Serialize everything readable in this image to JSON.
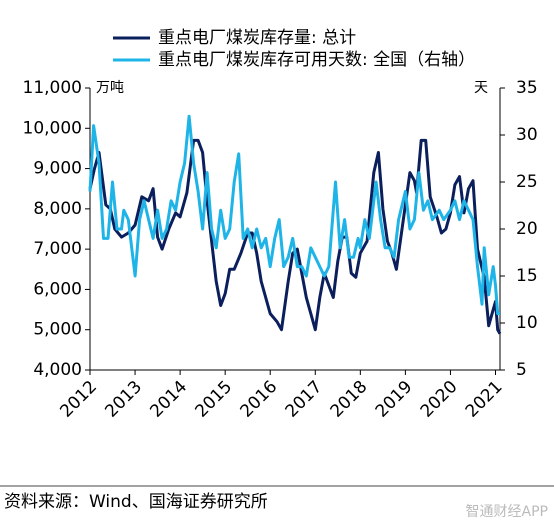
{
  "chart_data": {
    "type": "line",
    "legend": "top",
    "y_unit_label": "万吨",
    "y2_unit_label": "天",
    "source": "资料来源：Wind、国海证券研究所",
    "watermark": "智通财经APP",
    "xlim": [
      2012,
      2021.1
    ],
    "xticks": [
      2012,
      2013,
      2014,
      2015,
      2016,
      2017,
      2018,
      2019,
      2020,
      2021
    ],
    "ylim": [
      4000,
      11000
    ],
    "yticks": [
      {
        "value": 4000,
        "label": "4,000"
      },
      {
        "value": 5000,
        "label": "5,000"
      },
      {
        "value": 6000,
        "label": "6,000"
      },
      {
        "value": 7000,
        "label": "7,000"
      },
      {
        "value": 8000,
        "label": "8,000"
      },
      {
        "value": 9000,
        "label": "9,000"
      },
      {
        "value": 10000,
        "label": "10,000"
      },
      {
        "value": 11000,
        "label": "11,000"
      }
    ],
    "y2lim": [
      5,
      35
    ],
    "y2ticks": [
      5,
      10,
      15,
      20,
      25,
      30,
      35
    ],
    "series": [
      {
        "name": "重点电厂煤炭库存量: 总计",
        "color": "#0b1f5c",
        "x": [
          2012.0,
          2012.1,
          2012.2,
          2012.35,
          2012.45,
          2012.55,
          2012.7,
          2012.85,
          2013.0,
          2013.15,
          2013.3,
          2013.4,
          2013.5,
          2013.6,
          2013.75,
          2013.9,
          2014.0,
          2014.15,
          2014.3,
          2014.4,
          2014.5,
          2014.6,
          2014.7,
          2014.8,
          2014.9,
          2015.0,
          2015.1,
          2015.2,
          2015.35,
          2015.5,
          2015.6,
          2015.7,
          2015.8,
          2015.9,
          2016.0,
          2016.15,
          2016.25,
          2016.4,
          2016.5,
          2016.6,
          2016.7,
          2016.8,
          2016.9,
          2017.0,
          2017.1,
          2017.2,
          2017.3,
          2017.4,
          2017.5,
          2017.6,
          2017.7,
          2017.8,
          2017.9,
          2018.0,
          2018.15,
          2018.3,
          2018.4,
          2018.5,
          2018.6,
          2018.7,
          2018.8,
          2019.0,
          2019.1,
          2019.2,
          2019.25,
          2019.35,
          2019.45,
          2019.55,
          2019.7,
          2019.8,
          2019.9,
          2020.0,
          2020.1,
          2020.2,
          2020.3,
          2020.4,
          2020.5,
          2020.6,
          2020.75,
          2020.85,
          2020.95,
          2021.0,
          2021.05,
          2021.1
        ],
        "values": [
          8500,
          9000,
          9400,
          8100,
          8000,
          7500,
          7300,
          7400,
          7600,
          8300,
          8200,
          8500,
          7300,
          7000,
          7500,
          7900,
          7800,
          8400,
          9700,
          9700,
          9400,
          8200,
          7200,
          6200,
          5600,
          5900,
          6500,
          6500,
          6900,
          7400,
          7400,
          6900,
          6200,
          5800,
          5400,
          5200,
          5000,
          6200,
          6900,
          7000,
          6400,
          5800,
          5400,
          5000,
          5800,
          6400,
          6100,
          5800,
          6700,
          7300,
          7300,
          6400,
          6300,
          6900,
          7200,
          8900,
          9400,
          8000,
          7200,
          6900,
          6500,
          8100,
          8900,
          8700,
          8400,
          9700,
          9700,
          8300,
          7800,
          7400,
          7500,
          7900,
          8600,
          8800,
          7900,
          8500,
          8700,
          7000,
          6300,
          5100,
          5500,
          5700,
          5000,
          4900
        ]
      },
      {
        "name": "重点电厂煤炭库存可用天数: 全国（右轴）",
        "color": "#1fb4e8",
        "axis": "y2",
        "x": [
          2012.0,
          2012.08,
          2012.2,
          2012.3,
          2012.4,
          2012.5,
          2012.6,
          2012.7,
          2012.75,
          2012.85,
          2013.0,
          2013.1,
          2013.2,
          2013.3,
          2013.4,
          2013.5,
          2013.6,
          2013.7,
          2013.8,
          2013.9,
          2014.0,
          2014.1,
          2014.2,
          2014.3,
          2014.4,
          2014.5,
          2014.6,
          2014.7,
          2014.8,
          2014.9,
          2015.0,
          2015.1,
          2015.2,
          2015.3,
          2015.4,
          2015.5,
          2015.6,
          2015.7,
          2015.8,
          2015.9,
          2016.0,
          2016.1,
          2016.2,
          2016.3,
          2016.4,
          2016.5,
          2016.6,
          2016.7,
          2016.8,
          2016.9,
          2017.0,
          2017.1,
          2017.2,
          2017.3,
          2017.45,
          2017.55,
          2017.65,
          2017.75,
          2017.85,
          2017.95,
          2018.0,
          2018.1,
          2018.2,
          2018.35,
          2018.45,
          2018.55,
          2018.65,
          2018.75,
          2018.85,
          2019.0,
          2019.1,
          2019.2,
          2019.3,
          2019.4,
          2019.5,
          2019.6,
          2019.75,
          2019.85,
          2020.0,
          2020.1,
          2020.2,
          2020.3,
          2020.4,
          2020.5,
          2020.6,
          2020.7,
          2020.75,
          2020.85,
          2020.95,
          2021.0,
          2021.05,
          2021.1
        ],
        "values": [
          24,
          31,
          27,
          19,
          19,
          25,
          20,
          20,
          22,
          21,
          15,
          21,
          23,
          21,
          19,
          22,
          19,
          20,
          23,
          22,
          25,
          27,
          32,
          27,
          24,
          20,
          26,
          20,
          18,
          22,
          19,
          20,
          25,
          28,
          19,
          20,
          18,
          20,
          18,
          19,
          16,
          19,
          21,
          16,
          17,
          19,
          16,
          16,
          15,
          18,
          17,
          16,
          15,
          16,
          25,
          18,
          21,
          17,
          17,
          19,
          18,
          21,
          19,
          25,
          21,
          18,
          18,
          17,
          21,
          24,
          20,
          21,
          26,
          22,
          23,
          21,
          22,
          21,
          22,
          23,
          21,
          23,
          22,
          21,
          16,
          12,
          18,
          13,
          16,
          14,
          11,
          11
        ]
      }
    ]
  }
}
